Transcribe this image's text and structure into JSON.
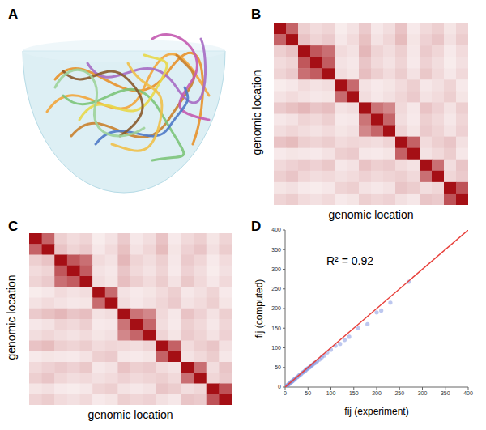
{
  "illustration": {
    "panel": "A"
  },
  "chart_data": [
    {
      "panel": "B",
      "type": "heatmap",
      "x_label": "genomic location",
      "y_label": "genomic location",
      "tick_labels": false,
      "color": "#a50f15",
      "cells": [
        [
          100,
          65,
          20,
          15,
          18,
          8,
          12,
          22,
          10,
          14,
          25,
          9,
          16,
          20,
          11,
          18
        ],
        [
          65,
          100,
          25,
          18,
          22,
          10,
          15,
          26,
          12,
          17,
          28,
          11,
          19,
          24,
          13,
          21
        ],
        [
          20,
          25,
          100,
          70,
          60,
          15,
          12,
          30,
          18,
          14,
          20,
          10,
          22,
          17,
          9,
          15
        ],
        [
          15,
          18,
          70,
          100,
          68,
          12,
          10,
          24,
          16,
          12,
          18,
          9,
          19,
          14,
          8,
          13
        ],
        [
          18,
          22,
          60,
          68,
          100,
          14,
          11,
          27,
          20,
          15,
          21,
          12,
          23,
          16,
          10,
          16
        ],
        [
          8,
          10,
          15,
          12,
          14,
          100,
          62,
          12,
          9,
          11,
          15,
          20,
          10,
          13,
          18,
          9
        ],
        [
          12,
          15,
          12,
          10,
          11,
          62,
          100,
          14,
          10,
          13,
          17,
          22,
          12,
          15,
          20,
          11
        ],
        [
          22,
          26,
          30,
          24,
          27,
          12,
          14,
          100,
          58,
          50,
          16,
          10,
          25,
          19,
          12,
          20
        ],
        [
          10,
          12,
          18,
          16,
          20,
          9,
          10,
          58,
          100,
          64,
          14,
          9,
          20,
          16,
          10,
          17
        ],
        [
          14,
          17,
          14,
          12,
          15,
          11,
          13,
          50,
          64,
          100,
          18,
          11,
          22,
          18,
          12,
          19
        ],
        [
          25,
          28,
          20,
          18,
          21,
          15,
          17,
          16,
          14,
          18,
          100,
          66,
          15,
          20,
          24,
          13
        ],
        [
          9,
          11,
          10,
          9,
          12,
          20,
          22,
          10,
          9,
          11,
          66,
          100,
          12,
          16,
          21,
          10
        ],
        [
          16,
          19,
          22,
          19,
          23,
          10,
          12,
          25,
          20,
          22,
          15,
          12,
          100,
          60,
          14,
          24
        ],
        [
          20,
          24,
          17,
          14,
          16,
          13,
          15,
          19,
          16,
          18,
          20,
          16,
          60,
          100,
          17,
          22
        ],
        [
          11,
          13,
          9,
          8,
          10,
          18,
          20,
          12,
          10,
          12,
          24,
          21,
          14,
          17,
          100,
          72
        ],
        [
          18,
          21,
          15,
          13,
          16,
          9,
          11,
          20,
          17,
          19,
          13,
          10,
          24,
          22,
          72,
          100
        ]
      ]
    },
    {
      "panel": "C",
      "type": "heatmap",
      "x_label": "genomic location",
      "y_label": "genomic location",
      "tick_labels": false,
      "color": "#a50f15",
      "cells": [
        [
          100,
          65,
          20,
          15,
          18,
          8,
          12,
          22,
          10,
          14,
          25,
          9,
          16,
          20,
          11,
          18
        ],
        [
          65,
          100,
          25,
          18,
          22,
          10,
          15,
          26,
          12,
          17,
          28,
          11,
          19,
          24,
          13,
          21
        ],
        [
          20,
          25,
          100,
          70,
          60,
          15,
          12,
          30,
          18,
          14,
          20,
          10,
          22,
          17,
          9,
          15
        ],
        [
          15,
          18,
          70,
          100,
          68,
          12,
          10,
          24,
          16,
          12,
          18,
          9,
          19,
          14,
          8,
          13
        ],
        [
          18,
          22,
          60,
          68,
          100,
          14,
          11,
          27,
          20,
          15,
          21,
          12,
          23,
          16,
          10,
          16
        ],
        [
          8,
          10,
          15,
          12,
          14,
          100,
          62,
          12,
          9,
          11,
          15,
          20,
          10,
          13,
          18,
          9
        ],
        [
          12,
          15,
          12,
          10,
          11,
          62,
          100,
          14,
          10,
          13,
          17,
          22,
          12,
          15,
          20,
          11
        ],
        [
          22,
          26,
          30,
          24,
          27,
          12,
          14,
          100,
          58,
          50,
          16,
          10,
          25,
          19,
          12,
          20
        ],
        [
          10,
          12,
          18,
          16,
          20,
          9,
          10,
          58,
          100,
          64,
          14,
          9,
          20,
          16,
          10,
          17
        ],
        [
          14,
          17,
          14,
          12,
          15,
          11,
          13,
          50,
          64,
          100,
          18,
          11,
          22,
          18,
          12,
          19
        ],
        [
          25,
          28,
          20,
          18,
          21,
          15,
          17,
          16,
          14,
          18,
          100,
          66,
          15,
          20,
          24,
          13
        ],
        [
          9,
          11,
          10,
          9,
          12,
          20,
          22,
          10,
          9,
          11,
          66,
          100,
          12,
          16,
          21,
          10
        ],
        [
          16,
          19,
          22,
          19,
          23,
          10,
          12,
          25,
          20,
          22,
          15,
          12,
          100,
          60,
          14,
          24
        ],
        [
          20,
          24,
          17,
          14,
          16,
          13,
          15,
          19,
          16,
          18,
          20,
          16,
          60,
          100,
          17,
          22
        ],
        [
          11,
          13,
          9,
          8,
          10,
          18,
          20,
          12,
          10,
          12,
          24,
          21,
          14,
          17,
          100,
          72
        ],
        [
          18,
          21,
          15,
          13,
          16,
          9,
          11,
          20,
          17,
          19,
          13,
          10,
          24,
          22,
          72,
          100
        ]
      ]
    },
    {
      "panel": "D",
      "type": "scatter",
      "x_label": "fij (experiment)",
      "y_label": "fij (computed)",
      "annotation": "R² = 0.92",
      "xlim": [
        0,
        400
      ],
      "ylim": [
        0,
        400
      ],
      "xticks": [
        0,
        50,
        100,
        150,
        200,
        250,
        300,
        350,
        400
      ],
      "yticks": [
        0,
        50,
        100,
        150,
        200,
        250,
        300,
        350,
        400
      ],
      "series": [
        {
          "type": "scatter",
          "color": "#7b8fe0",
          "x": [
            2,
            4,
            5,
            7,
            8,
            10,
            12,
            14,
            15,
            17,
            19,
            20,
            22,
            25,
            27,
            30,
            32,
            35,
            38,
            40,
            43,
            45,
            48,
            50,
            53,
            55,
            58,
            60,
            63,
            66,
            70,
            75,
            80,
            85,
            92,
            100,
            110,
            120,
            130,
            140,
            160,
            180,
            200,
            210,
            230,
            270
          ],
          "values": [
            2,
            3,
            5,
            6,
            8,
            9,
            12,
            13,
            15,
            16,
            18,
            20,
            21,
            24,
            26,
            29,
            31,
            33,
            37,
            38,
            41,
            43,
            46,
            48,
            50,
            52,
            55,
            57,
            60,
            62,
            66,
            70,
            76,
            80,
            88,
            95,
            105,
            110,
            120,
            128,
            150,
            160,
            190,
            195,
            215,
            268
          ]
        },
        {
          "type": "line",
          "color": "#e8413c",
          "x": [
            0,
            400
          ],
          "values": [
            0,
            400
          ]
        }
      ]
    }
  ]
}
